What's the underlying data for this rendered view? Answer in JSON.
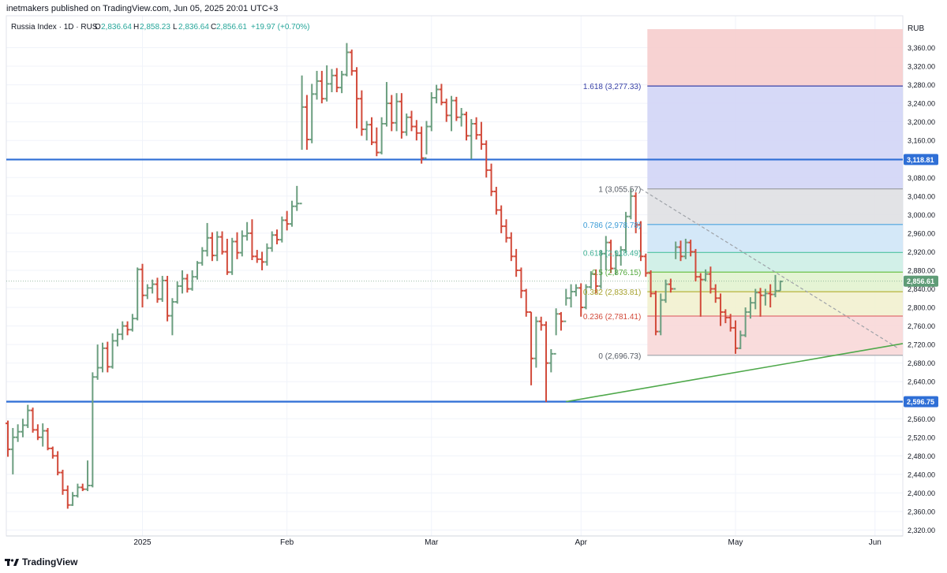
{
  "publisher": "inetmakers published on TradingView.com, Jun 05, 2025 20:01 UTC+3",
  "footer": {
    "brand": "TradingView",
    "logo_icon": "tradingview-logo-icon"
  },
  "legend": {
    "symbol": "Russia Index · 1D · RUS",
    "o_label": "O",
    "o": "2,836.64",
    "h_label": "H",
    "h": "2,858.23",
    "l_label": "L",
    "l": "2,836.64",
    "c_label": "C",
    "c": "2,856.61",
    "change": "+19.97 (+0.70%)"
  },
  "colors": {
    "up": "#6b9e7f",
    "down": "#d24a3a",
    "hline": "#2f6fd6",
    "trend": "#4ea84a",
    "fib_dashed": "#9ea2a8",
    "legend_green": "#26a69a"
  },
  "chart_data": {
    "type": "ohlc",
    "title": "Russia Index · 1D · RUS",
    "currency": "RUB",
    "ylim": [
      2310,
      3400
    ],
    "grid": true,
    "x_labels": [
      "2025",
      "Feb",
      "Mar",
      "Apr",
      "May",
      "Jun"
    ],
    "y_ticks": [
      2320,
      2360,
      2400,
      2440,
      2480,
      2520,
      2560,
      2600,
      2640,
      2680,
      2720,
      2760,
      2800,
      2840,
      2880,
      2920,
      2960,
      3000,
      3040,
      3080,
      3120,
      3160,
      3200,
      3240,
      3280,
      3320,
      3360
    ],
    "y_tick_labels": [
      "2,320.00",
      "2,360.00",
      "2,400.00",
      "2,440.00",
      "2,480.00",
      "2,520.00",
      "2,560.00",
      "2,600.00",
      "2,640.00",
      "2,680.00",
      "2,720.00",
      "2,760.00",
      "2,800.00",
      "2,840.00",
      "2,880.00",
      "2,920.00",
      "2,960.00",
      "3,000.00",
      "3,040.00",
      "3,080.00",
      "3,120.00",
      "3,160.00",
      "3,200.00",
      "3,240.00",
      "3,280.00",
      "3,320.00",
      "3,360.00"
    ],
    "horizontal_lines": [
      {
        "value": 3118.81,
        "label": "3,118.81"
      },
      {
        "value": 2596.75,
        "label": "2,596.75"
      }
    ],
    "last_price": {
      "value": 2856.61,
      "label": "2,856.61"
    },
    "trendline": {
      "from": {
        "bar": 112,
        "value": 2596.75
      },
      "to": {
        "bar": 164,
        "value": 2722
      }
    },
    "fib_projection_dashed": {
      "from": {
        "bar": 127,
        "value": 3055.57
      },
      "to": {
        "bar": 164,
        "value": 2712
      }
    },
    "fibonacci": {
      "start_bar": 128,
      "extension": {
        "label": "1.618 (3,277.33)",
        "value": 3277.33
      },
      "levels": [
        {
          "ratio": 1,
          "value": 3055.57,
          "label": "1 (3,055.57)"
        },
        {
          "ratio": 0.786,
          "value": 2978.78,
          "label": "0.786 (2,978.78)"
        },
        {
          "ratio": 0.618,
          "value": 2918.49,
          "label": "0.618 (2,918.49)"
        },
        {
          "ratio": 0.5,
          "value": 2876.15,
          "label": "0.5 (2,876.15)"
        },
        {
          "ratio": 0.382,
          "value": 2833.81,
          "label": "0.382 (2,833.81)"
        },
        {
          "ratio": 0.236,
          "value": 2781.41,
          "label": "0.236 (2,781.41)"
        },
        {
          "ratio": 0,
          "value": 2696.73,
          "label": "0 (2,696.73)"
        }
      ]
    },
    "bars": [
      [
        2550,
        2556,
        2478,
        2494
      ],
      [
        2494,
        2540,
        2440,
        2520
      ],
      [
        2520,
        2548,
        2510,
        2532
      ],
      [
        2532,
        2560,
        2520,
        2546
      ],
      [
        2546,
        2590,
        2540,
        2578
      ],
      [
        2578,
        2584,
        2530,
        2536
      ],
      [
        2536,
        2548,
        2514,
        2520
      ],
      [
        2520,
        2550,
        2500,
        2534
      ],
      [
        2534,
        2540,
        2492,
        2496
      ],
      [
        2496,
        2500,
        2474,
        2480
      ],
      [
        2480,
        2490,
        2438,
        2444
      ],
      [
        2444,
        2450,
        2396,
        2406
      ],
      [
        2406,
        2416,
        2366,
        2374
      ],
      [
        2374,
        2402,
        2372,
        2394
      ],
      [
        2394,
        2420,
        2390,
        2412
      ],
      [
        2412,
        2420,
        2404,
        2408
      ],
      [
        2408,
        2470,
        2404,
        2416
      ],
      [
        2416,
        2660,
        2412,
        2650
      ],
      [
        2650,
        2720,
        2644,
        2670
      ],
      [
        2670,
        2724,
        2660,
        2712
      ],
      [
        2712,
        2726,
        2660,
        2672
      ],
      [
        2672,
        2744,
        2668,
        2728
      ],
      [
        2728,
        2754,
        2716,
        2742
      ],
      [
        2742,
        2770,
        2730,
        2760
      ],
      [
        2760,
        2770,
        2740,
        2752
      ],
      [
        2752,
        2786,
        2748,
        2776
      ],
      [
        2776,
        2886,
        2772,
        2882
      ],
      [
        2882,
        2894,
        2800,
        2826
      ],
      [
        2826,
        2850,
        2818,
        2842
      ],
      [
        2842,
        2860,
        2830,
        2850
      ],
      [
        2850,
        2864,
        2810,
        2818
      ],
      [
        2818,
        2868,
        2812,
        2858
      ],
      [
        2858,
        2868,
        2770,
        2782
      ],
      [
        2782,
        2820,
        2740,
        2812
      ],
      [
        2812,
        2856,
        2808,
        2846
      ],
      [
        2846,
        2880,
        2830,
        2862
      ],
      [
        2862,
        2872,
        2832,
        2840
      ],
      [
        2840,
        2880,
        2836,
        2866
      ],
      [
        2866,
        2900,
        2860,
        2896
      ],
      [
        2896,
        2930,
        2890,
        2922
      ],
      [
        2922,
        2982,
        2910,
        2950
      ],
      [
        2950,
        2962,
        2900,
        2912
      ],
      [
        2912,
        2964,
        2900,
        2952
      ],
      [
        2952,
        2964,
        2914,
        2920
      ],
      [
        2920,
        2948,
        2870,
        2876
      ],
      [
        2876,
        2950,
        2870,
        2942
      ],
      [
        2942,
        2962,
        2904,
        2918
      ],
      [
        2918,
        2966,
        2910,
        2954
      ],
      [
        2954,
        2984,
        2944,
        2960
      ],
      [
        2960,
        2990,
        2902,
        2910
      ],
      [
        2910,
        2924,
        2896,
        2904
      ],
      [
        2904,
        2920,
        2880,
        2898
      ],
      [
        2898,
        2938,
        2890,
        2928
      ],
      [
        2928,
        2964,
        2920,
        2956
      ],
      [
        2956,
        2968,
        2936,
        2946
      ],
      [
        2946,
        2996,
        2940,
        2988
      ],
      [
        2988,
        3008,
        2966,
        2980
      ],
      [
        2980,
        3030,
        2974,
        3018
      ],
      [
        3018,
        3062,
        3008,
        3024
      ],
      [
        3024,
        3300,
        3140,
        3232
      ],
      [
        3232,
        3258,
        3140,
        3162
      ],
      [
        3162,
        3282,
        3154,
        3260
      ],
      [
        3260,
        3310,
        3248,
        3288
      ],
      [
        3288,
        3310,
        3240,
        3250
      ],
      [
        3250,
        3322,
        3244,
        3282
      ],
      [
        3282,
        3314,
        3264,
        3300
      ],
      [
        3300,
        3316,
        3264,
        3274
      ],
      [
        3274,
        3310,
        3262,
        3302
      ],
      [
        3302,
        3370,
        3298,
        3350
      ],
      [
        3350,
        3356,
        3300,
        3310
      ],
      [
        3310,
        3318,
        3186,
        3250
      ],
      [
        3250,
        3268,
        3170,
        3184
      ],
      [
        3184,
        3202,
        3160,
        3194
      ],
      [
        3194,
        3210,
        3150,
        3156
      ],
      [
        3156,
        3188,
        3126,
        3134
      ],
      [
        3134,
        3210,
        3130,
        3196
      ],
      [
        3196,
        3286,
        3190,
        3240
      ],
      [
        3240,
        3258,
        3180,
        3198
      ],
      [
        3198,
        3262,
        3180,
        3244
      ],
      [
        3244,
        3262,
        3164,
        3178
      ],
      [
        3178,
        3218,
        3170,
        3210
      ],
      [
        3210,
        3224,
        3180,
        3190
      ],
      [
        3190,
        3204,
        3160,
        3176
      ],
      [
        3176,
        3190,
        3110,
        3122
      ],
      [
        3122,
        3202,
        3130,
        3190
      ],
      [
        3190,
        3264,
        3180,
        3252
      ],
      [
        3252,
        3280,
        3240,
        3270
      ],
      [
        3270,
        3282,
        3236,
        3242
      ],
      [
        3242,
        3250,
        3200,
        3214
      ],
      [
        3214,
        3256,
        3180,
        3246
      ],
      [
        3246,
        3254,
        3202,
        3210
      ],
      [
        3210,
        3230,
        3190,
        3216
      ],
      [
        3216,
        3222,
        3160,
        3170
      ],
      [
        3170,
        3206,
        3120,
        3196
      ],
      [
        3196,
        3210,
        3162,
        3172
      ],
      [
        3172,
        3200,
        3140,
        3152
      ],
      [
        3152,
        3160,
        3080,
        3096
      ],
      [
        3096,
        3110,
        3040,
        3050
      ],
      [
        3050,
        3060,
        3000,
        3010
      ],
      [
        3010,
        3020,
        2960,
        2975
      ],
      [
        2975,
        2990,
        2940,
        2950
      ],
      [
        2950,
        2962,
        2900,
        2910
      ],
      [
        2910,
        2926,
        2866,
        2880
      ],
      [
        2880,
        2886,
        2820,
        2836
      ],
      [
        2836,
        2840,
        2780,
        2790
      ],
      [
        2790,
        2790,
        2632,
        2690
      ],
      [
        2690,
        2780,
        2670,
        2770
      ],
      [
        2770,
        2780,
        2750,
        2762
      ],
      [
        2762,
        2770,
        2596,
        2680
      ],
      [
        2680,
        2710,
        2660,
        2700
      ],
      [
        2700,
        2798,
        2740,
        2786
      ],
      [
        2786,
        2790,
        2750,
        2770
      ],
      [
        2770,
        2840,
        2804,
        2820
      ],
      [
        2820,
        2850,
        2800,
        2834
      ],
      [
        2834,
        2850,
        2824,
        2842
      ],
      [
        2842,
        2852,
        2780,
        2800
      ],
      [
        2800,
        2850,
        2796,
        2844
      ],
      [
        2844,
        2878,
        2840,
        2872
      ],
      [
        2872,
        2882,
        2830,
        2846
      ],
      [
        2846,
        2924,
        2840,
        2916
      ],
      [
        2916,
        2954,
        2880,
        2940
      ],
      [
        2940,
        2946,
        2874,
        2884
      ],
      [
        2884,
        2922,
        2870,
        2912
      ],
      [
        2912,
        2932,
        2890,
        2924
      ],
      [
        2924,
        3006,
        2918,
        2996
      ],
      [
        2996,
        3055,
        2990,
        3040
      ],
      [
        3040,
        3048,
        2960,
        2978
      ],
      [
        2978,
        2986,
        2900,
        2910
      ],
      [
        2910,
        2916,
        2866,
        2874
      ],
      [
        2874,
        2880,
        2822,
        2830
      ],
      [
        2830,
        2836,
        2740,
        2748
      ],
      [
        2748,
        2830,
        2740,
        2816
      ],
      [
        2816,
        2860,
        2810,
        2850
      ],
      [
        2850,
        2862,
        2832,
        2840
      ],
      [
        2840,
        2942,
        2904,
        2930
      ],
      [
        2930,
        2944,
        2900,
        2910
      ],
      [
        2910,
        2948,
        2904,
        2940
      ],
      [
        2940,
        2946,
        2910,
        2920
      ],
      [
        2920,
        2926,
        2856,
        2866
      ],
      [
        2866,
        2874,
        2780,
        2860
      ],
      [
        2860,
        2882,
        2856,
        2872
      ],
      [
        2872,
        2888,
        2830,
        2840
      ],
      [
        2840,
        2850,
        2810,
        2820
      ],
      [
        2820,
        2830,
        2760,
        2790
      ],
      [
        2790,
        2796,
        2766,
        2778
      ],
      [
        2778,
        2786,
        2748,
        2756
      ],
      [
        2756,
        2772,
        2700,
        2712
      ],
      [
        2712,
        2750,
        2710,
        2740
      ],
      [
        2740,
        2800,
        2736,
        2790
      ],
      [
        2790,
        2822,
        2776,
        2810
      ],
      [
        2810,
        2840,
        2796,
        2832
      ],
      [
        2832,
        2842,
        2780,
        2826
      ],
      [
        2826,
        2840,
        2804,
        2830
      ],
      [
        2830,
        2850,
        2800,
        2828
      ],
      [
        2828,
        2870,
        2822,
        2836
      ],
      [
        2836,
        2858,
        2836,
        2856
      ]
    ]
  }
}
